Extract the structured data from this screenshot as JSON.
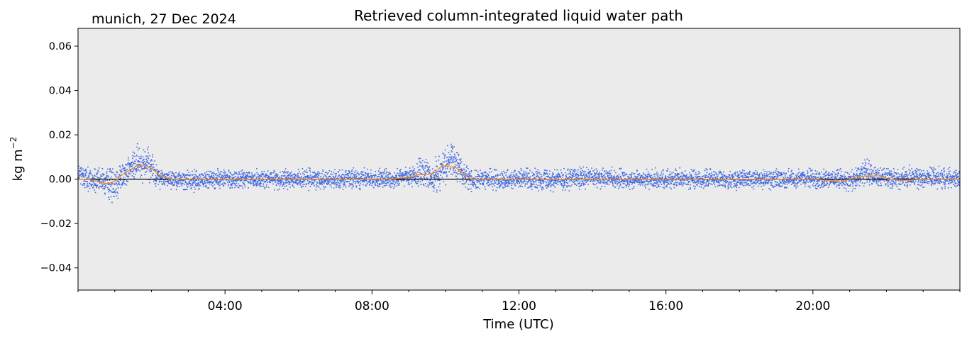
{
  "chart_data": {
    "type": "scatter",
    "title": "Retrieved column-integrated liquid water path",
    "location_title": "munich, 27 Dec 2024",
    "xlabel": "Time (UTC)",
    "ylabel": "kg m",
    "ylabel_superscript": "−2",
    "x_units": "hours (UTC)",
    "xlim": [
      0,
      24
    ],
    "ylim": [
      -0.05,
      0.068
    ],
    "x_ticks": [
      {
        "value": 4,
        "label": "04:00"
      },
      {
        "value": 8,
        "label": "08:00"
      },
      {
        "value": 12,
        "label": "12:00"
      },
      {
        "value": 16,
        "label": "16:00"
      },
      {
        "value": 20,
        "label": "20:00"
      }
    ],
    "y_ticks": [
      {
        "value": -0.04,
        "label": "−0.04"
      },
      {
        "value": -0.02,
        "label": "−0.02"
      },
      {
        "value": 0.0,
        "label": "0.00"
      },
      {
        "value": 0.02,
        "label": "0.02"
      },
      {
        "value": 0.04,
        "label": "0.04"
      },
      {
        "value": 0.06,
        "label": "0.06"
      }
    ],
    "grid": false,
    "zero_line": true,
    "series": [
      {
        "kind": "scatter",
        "color": "#4169e1",
        "envelope": {
          "x": [
            0.0,
            0.1,
            0.2,
            0.4,
            0.6,
            0.8,
            1.0,
            1.2,
            1.4,
            1.6,
            1.8,
            2.0,
            2.2,
            2.4,
            2.6,
            3.0,
            4.0,
            5.0,
            6.0,
            7.0,
            8.0,
            8.5,
            9.0,
            9.2,
            9.4,
            9.6,
            9.8,
            10.0,
            10.2,
            10.4,
            10.6,
            10.8,
            11.0,
            12.0,
            13.0,
            14.0,
            15.0,
            16.0,
            17.0,
            18.0,
            19.0,
            20.0,
            20.6,
            21.0,
            21.2,
            21.4,
            21.6,
            21.8,
            22.0,
            22.4,
            23.0,
            24.0
          ],
          "low": [
            -0.004,
            -0.005,
            -0.006,
            -0.007,
            -0.007,
            -0.01,
            -0.012,
            -0.007,
            -0.003,
            -0.002,
            -0.001,
            -0.004,
            -0.005,
            -0.004,
            -0.005,
            -0.006,
            -0.005,
            -0.005,
            -0.005,
            -0.005,
            -0.005,
            -0.005,
            -0.004,
            -0.004,
            -0.006,
            -0.008,
            -0.006,
            -0.003,
            -0.002,
            -0.003,
            -0.006,
            -0.006,
            -0.005,
            -0.005,
            -0.006,
            -0.005,
            -0.005,
            -0.005,
            -0.005,
            -0.005,
            -0.005,
            -0.005,
            -0.005,
            -0.006,
            -0.005,
            -0.004,
            -0.004,
            -0.004,
            -0.005,
            -0.005,
            -0.005,
            -0.005
          ],
          "high": [
            0.008,
            0.009,
            0.007,
            0.006,
            0.005,
            0.006,
            0.008,
            0.01,
            0.012,
            0.016,
            0.017,
            0.014,
            0.006,
            0.004,
            0.005,
            0.005,
            0.005,
            0.005,
            0.005,
            0.005,
            0.005,
            0.005,
            0.006,
            0.008,
            0.013,
            0.008,
            0.012,
            0.015,
            0.018,
            0.014,
            0.006,
            0.005,
            0.005,
            0.005,
            0.006,
            0.006,
            0.005,
            0.005,
            0.005,
            0.005,
            0.005,
            0.005,
            0.005,
            0.005,
            0.007,
            0.011,
            0.008,
            0.006,
            0.006,
            0.006,
            0.006,
            0.006
          ]
        }
      },
      {
        "kind": "line",
        "color": "#ff8c1a",
        "x": [
          0.0,
          0.3,
          0.5,
          0.8,
          1.0,
          1.2,
          1.4,
          1.6,
          1.8,
          2.0,
          2.2,
          2.5,
          3.0,
          4.0,
          5.0,
          6.0,
          7.0,
          8.0,
          8.5,
          9.0,
          9.3,
          9.5,
          9.7,
          9.9,
          10.1,
          10.3,
          10.5,
          10.7,
          11.0,
          12.0,
          13.0,
          14.0,
          15.0,
          16.0,
          17.0,
          18.0,
          19.0,
          20.0,
          20.8,
          21.0,
          21.2,
          21.5,
          21.8,
          22.1,
          22.5,
          23.0,
          24.0
        ],
        "y": [
          0.0,
          0.0,
          -0.001,
          -0.002,
          -0.001,
          0.002,
          0.004,
          0.006,
          0.006,
          0.005,
          0.002,
          0.0,
          0.0,
          0.0,
          0.0,
          0.0,
          0.0,
          0.0,
          0.0,
          0.001,
          0.002,
          0.002,
          0.003,
          0.006,
          0.006,
          0.005,
          0.002,
          0.0,
          0.0,
          0.0,
          0.0,
          0.0,
          0.0,
          0.0,
          0.0,
          0.0,
          0.0,
          0.0,
          -0.001,
          0.0,
          0.001,
          0.0015,
          0.0015,
          0.0,
          -0.0005,
          0.0,
          0.0
        ]
      }
    ]
  }
}
